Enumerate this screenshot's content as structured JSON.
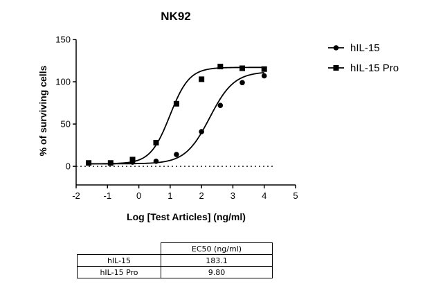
{
  "chart_data": {
    "type": "scatter",
    "title": "NK92",
    "xlabel": "Log [Test Articles] (ng/ml)",
    "ylabel": "% of surviving cells",
    "xlim": [
      -2,
      5
    ],
    "ylim": [
      -22,
      150
    ],
    "x_ticks": [
      -2,
      -1,
      0,
      1,
      2,
      3,
      4,
      5
    ],
    "y_ticks": [
      0,
      50,
      100,
      150
    ],
    "baseline": 0,
    "legend_position": "right",
    "series": [
      {
        "name": "hIL-15",
        "marker": "circle",
        "x": [
          -1.6,
          -0.9,
          -0.2,
          0.55,
          1.2,
          2.0,
          2.6,
          3.3,
          4.0
        ],
        "y": [
          4,
          4,
          5,
          6,
          14,
          41,
          72,
          99,
          107
        ],
        "curve": {
          "bottom": 3,
          "top": 112,
          "logEC50": 2.26,
          "hill": 1.12
        }
      },
      {
        "name": "hIL-15 Pro",
        "marker": "square",
        "x": [
          -1.6,
          -0.9,
          -0.2,
          0.55,
          1.2,
          2.0,
          2.6,
          3.3,
          4.0
        ],
        "y": [
          4,
          4,
          8,
          28,
          74,
          103,
          118,
          116,
          115
        ],
        "curve": {
          "bottom": 3,
          "top": 117,
          "logEC50": 0.99,
          "hill": 1.4
        }
      }
    ]
  },
  "table": {
    "header": "EC50 (ng/ml)",
    "rows": [
      {
        "label": "hIL-15",
        "value": "183.1"
      },
      {
        "label": "hIL-15 Pro",
        "value": "9.80"
      }
    ]
  }
}
